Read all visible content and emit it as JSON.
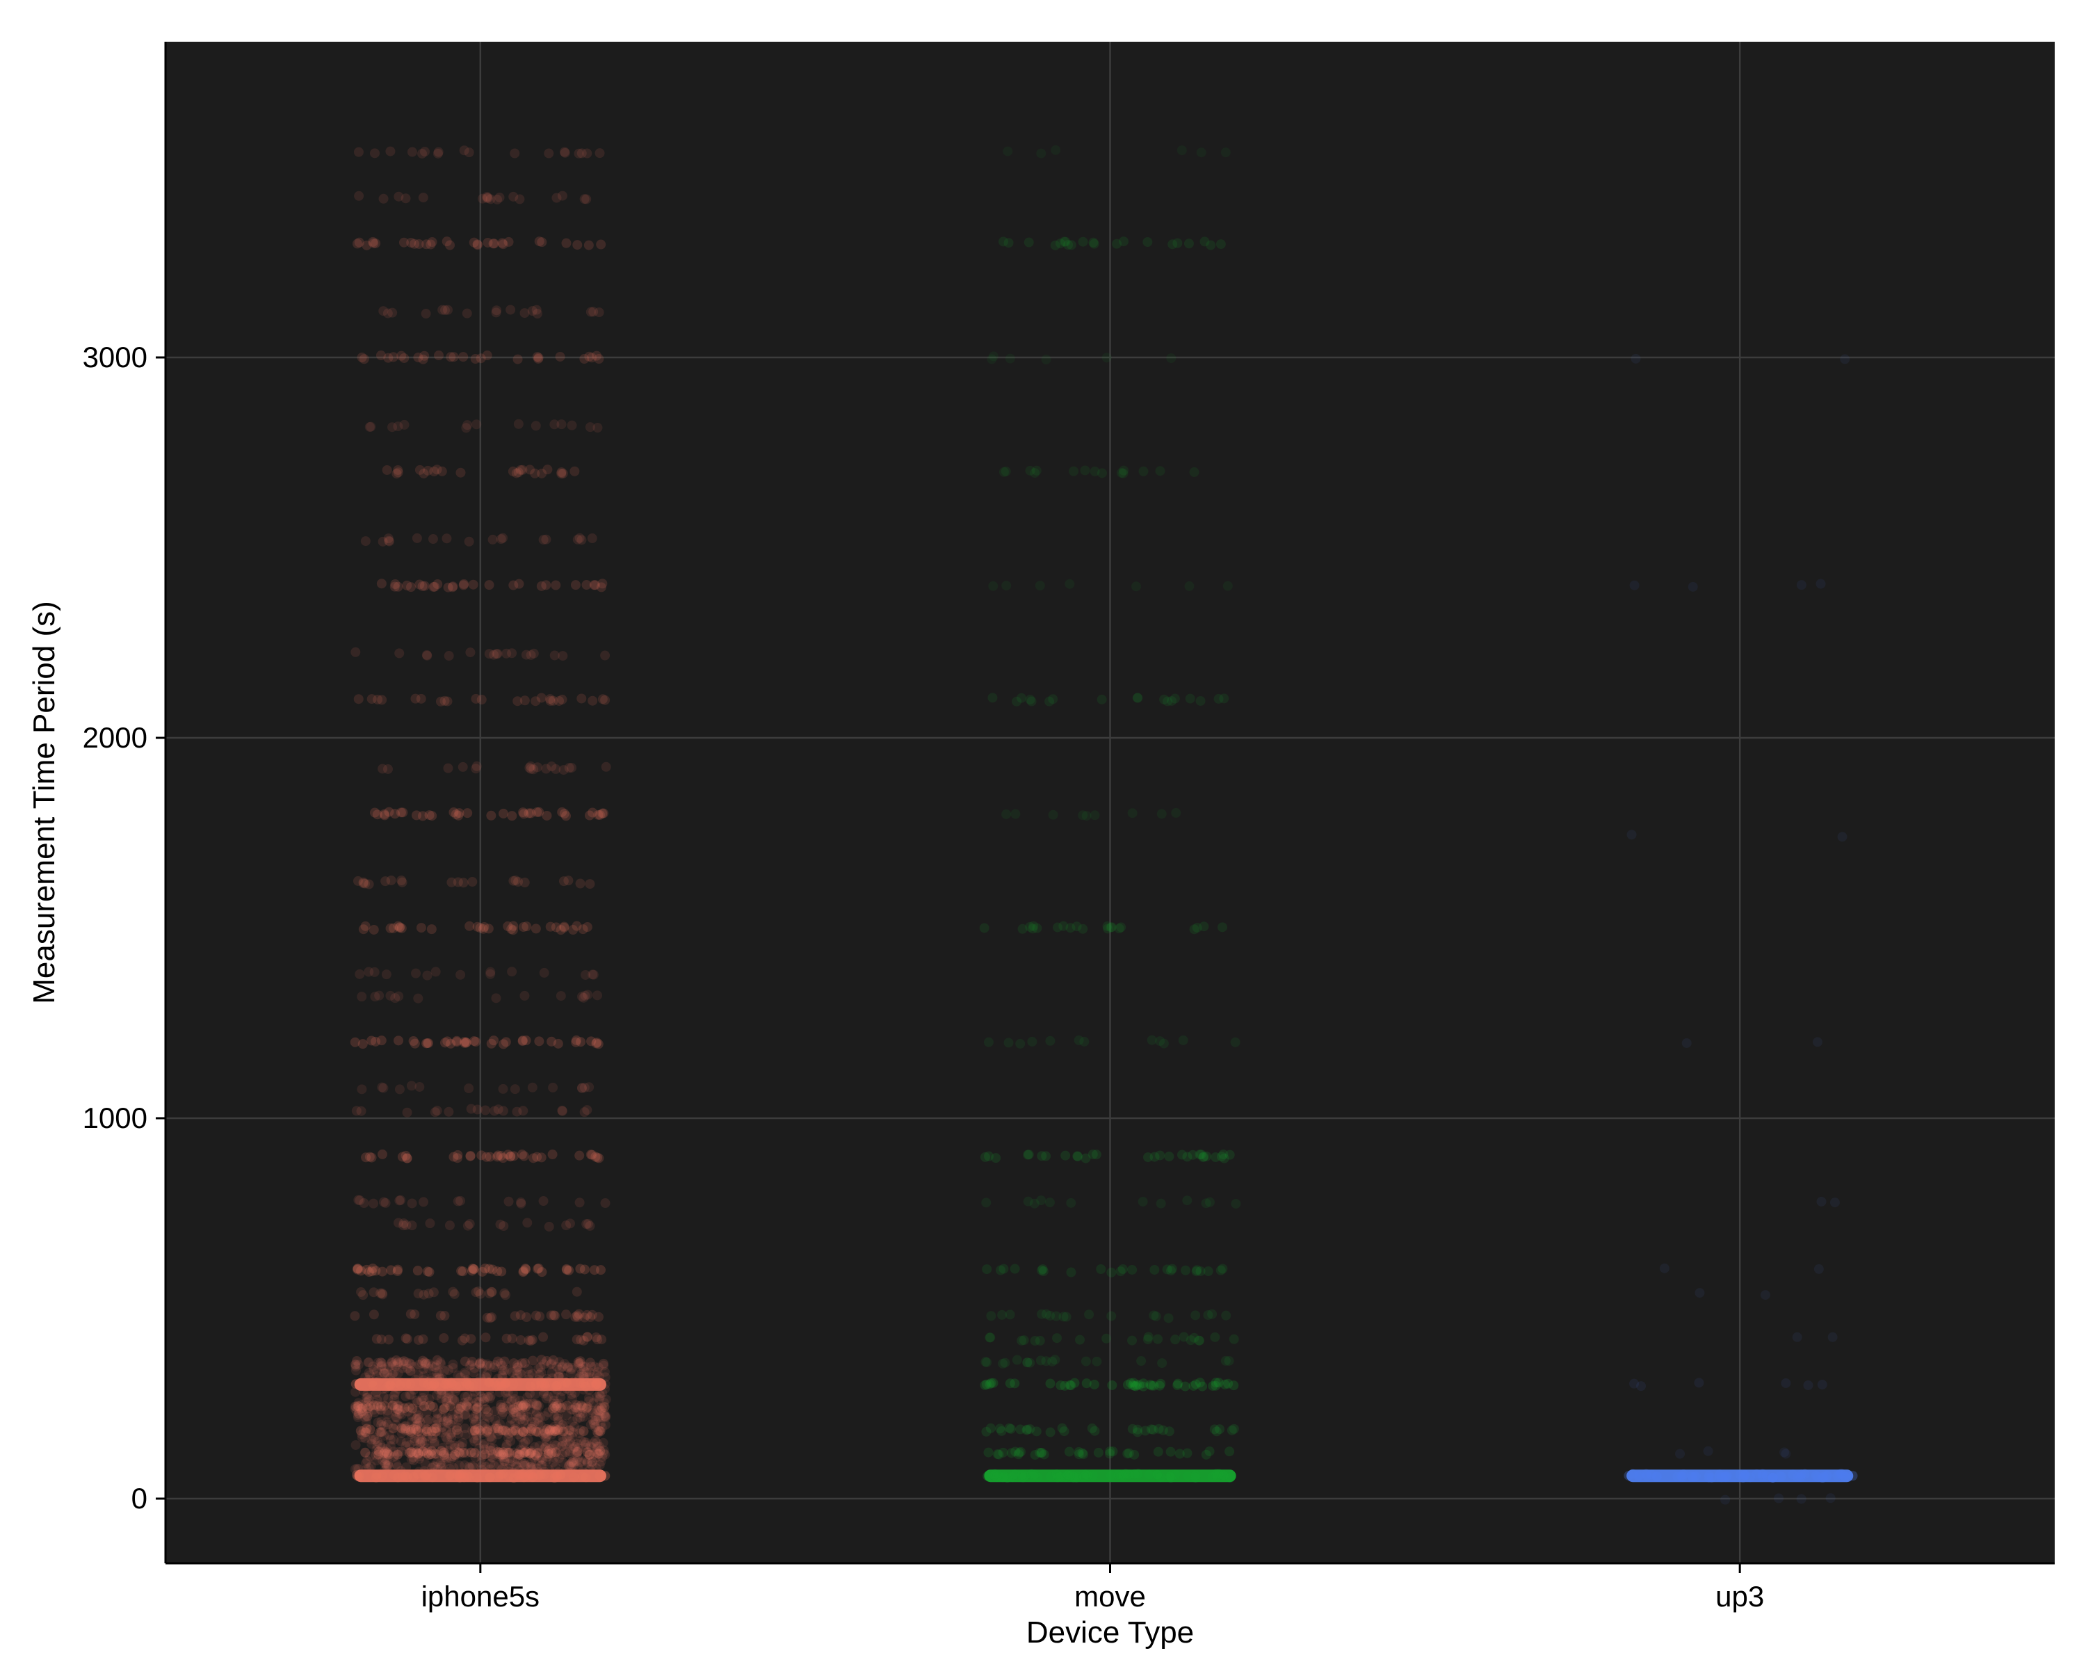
{
  "chart_data": {
    "type": "scatter",
    "title": "",
    "xlabel": "Device Type",
    "ylabel": "Measurement Time Period (s)",
    "categories": [
      "iphone5s",
      "move",
      "up3"
    ],
    "ylim": [
      -170,
      3830
    ],
    "yticks": [
      0,
      1000,
      2000,
      3000
    ],
    "grid": true,
    "legend": "none",
    "background": "#1c1c1c",
    "series": [
      {
        "category": "iphone5s",
        "color": "#e8735f",
        "levels": [
          {
            "y": 60,
            "strength": 1.0
          },
          {
            "y": 120,
            "strength": 0.9
          },
          {
            "y": 180,
            "strength": 0.8
          },
          {
            "y": 240,
            "strength": 0.75
          },
          {
            "y": 300,
            "strength": 1.0
          },
          {
            "y": 360,
            "strength": 0.5
          },
          {
            "y": 420,
            "strength": 0.45
          },
          {
            "y": 480,
            "strength": 0.45
          },
          {
            "y": 540,
            "strength": 0.35
          },
          {
            "y": 600,
            "strength": 0.7
          },
          {
            "y": 720,
            "strength": 0.3
          },
          {
            "y": 780,
            "strength": 0.3
          },
          {
            "y": 900,
            "strength": 0.6
          },
          {
            "y": 1020,
            "strength": 0.3
          },
          {
            "y": 1080,
            "strength": 0.25
          },
          {
            "y": 1200,
            "strength": 0.65
          },
          {
            "y": 1320,
            "strength": 0.25
          },
          {
            "y": 1380,
            "strength": 0.25
          },
          {
            "y": 1500,
            "strength": 0.55
          },
          {
            "y": 1620,
            "strength": 0.35
          },
          {
            "y": 1800,
            "strength": 0.6
          },
          {
            "y": 1920,
            "strength": 0.3
          },
          {
            "y": 2100,
            "strength": 0.4
          },
          {
            "y": 2220,
            "strength": 0.3
          },
          {
            "y": 2400,
            "strength": 0.5
          },
          {
            "y": 2520,
            "strength": 0.3
          },
          {
            "y": 2700,
            "strength": 0.4
          },
          {
            "y": 2820,
            "strength": 0.25
          },
          {
            "y": 3000,
            "strength": 0.45
          },
          {
            "y": 3120,
            "strength": 0.3
          },
          {
            "y": 3300,
            "strength": 0.5
          },
          {
            "y": 3420,
            "strength": 0.3
          },
          {
            "y": 3540,
            "strength": 0.3
          }
        ]
      },
      {
        "category": "move",
        "color": "#16a22e",
        "levels": [
          {
            "y": 60,
            "strength": 1.0
          },
          {
            "y": 120,
            "strength": 0.55
          },
          {
            "y": 180,
            "strength": 0.5
          },
          {
            "y": 300,
            "strength": 0.75
          },
          {
            "y": 360,
            "strength": 0.3
          },
          {
            "y": 420,
            "strength": 0.35
          },
          {
            "y": 480,
            "strength": 0.3
          },
          {
            "y": 600,
            "strength": 0.4
          },
          {
            "y": 780,
            "strength": 0.2
          },
          {
            "y": 900,
            "strength": 0.5
          },
          {
            "y": 1200,
            "strength": 0.2
          },
          {
            "y": 1500,
            "strength": 0.35
          },
          {
            "y": 1800,
            "strength": 0.15
          },
          {
            "y": 2100,
            "strength": 0.3
          },
          {
            "y": 2400,
            "strength": 0.12
          },
          {
            "y": 2700,
            "strength": 0.25
          },
          {
            "y": 3000,
            "strength": 0.1
          },
          {
            "y": 3300,
            "strength": 0.35
          },
          {
            "y": 3540,
            "strength": 0.1
          }
        ]
      },
      {
        "category": "up3",
        "color": "#4f7ff0",
        "levels": [
          {
            "y": 60,
            "strength": 1.0
          },
          {
            "y": 0,
            "strength": 0.06
          },
          {
            "y": 120,
            "strength": 0.06
          },
          {
            "y": 300,
            "strength": 0.1
          },
          {
            "y": 420,
            "strength": 0.04
          },
          {
            "y": 540,
            "strength": 0.04
          },
          {
            "y": 600,
            "strength": 0.04
          },
          {
            "y": 780,
            "strength": 0.04
          },
          {
            "y": 1200,
            "strength": 0.04
          },
          {
            "y": 1740,
            "strength": 0.04
          },
          {
            "y": 2400,
            "strength": 0.06
          },
          {
            "y": 3000,
            "strength": 0.04
          }
        ]
      }
    ]
  }
}
